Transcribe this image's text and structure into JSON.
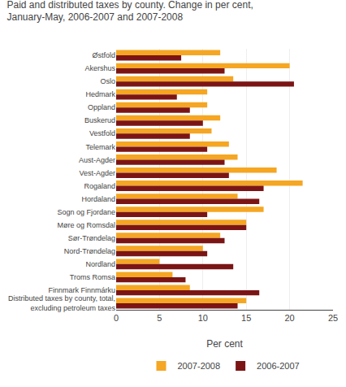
{
  "chart_data": {
    "type": "bar",
    "orientation": "horizontal",
    "title": "Paid and distributed taxes by county. Change in per cent,\nJanuary-May, 2006-2007 and 2007-2008",
    "categories": [
      "Østfold",
      "Akershus",
      "Oslo",
      "Hedmark",
      "Oppland",
      "Buskerud",
      "Vestfold",
      "Telemark",
      "Aust-Agder",
      "Vest-Agder",
      "Rogaland",
      "Hordaland",
      "Sogn og Fjordane",
      "Møre og Romsdal",
      "Sør-Trøndelag",
      "Nord-Trøndelag",
      "Nordland",
      "Troms Romsa",
      "Finnmark Finnmárku",
      "Distributed taxes by county, total,\nexcluding petroleum taxes"
    ],
    "series": [
      {
        "name": "2007-2008",
        "color": "#F5A623",
        "values": [
          12.0,
          20.0,
          13.5,
          10.5,
          10.5,
          12.0,
          11.0,
          13.0,
          14.0,
          18.5,
          21.5,
          14.0,
          17.0,
          15.0,
          12.0,
          10.0,
          5.0,
          6.5,
          8.5,
          15.0
        ]
      },
      {
        "name": "2006-2007",
        "color": "#7B1515",
        "values": [
          7.5,
          12.5,
          20.5,
          7.0,
          8.5,
          10.0,
          8.5,
          10.5,
          12.5,
          13.0,
          17.0,
          16.5,
          10.5,
          15.0,
          12.5,
          10.5,
          13.5,
          8.0,
          16.5,
          14.0
        ]
      }
    ],
    "xlabel": "Per cent",
    "xlim": [
      0,
      25
    ],
    "xticks": [
      0,
      5,
      10,
      15,
      20,
      25
    ],
    "grid": true,
    "legend": "bottom"
  }
}
